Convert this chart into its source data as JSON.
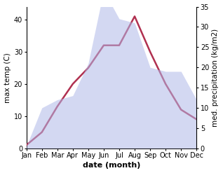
{
  "months": [
    "Jan",
    "Feb",
    "Mar",
    "Apr",
    "May",
    "Jun",
    "Jul",
    "Aug",
    "Sep",
    "Oct",
    "Nov",
    "Dec"
  ],
  "temp": [
    1,
    5,
    13,
    20,
    25,
    32,
    32,
    41,
    30,
    20,
    12,
    9
  ],
  "precip": [
    0.5,
    10,
    12,
    13,
    21,
    39,
    32,
    31,
    20,
    19,
    19,
    12
  ],
  "temp_color": "#b03050",
  "precip_fill_color": "#b0b8e8",
  "precip_fill_alpha": 0.55,
  "xlabel": "date (month)",
  "ylabel_left": "max temp (C)",
  "ylabel_right": "med. precipitation (kg/m2)",
  "ylim_left": [
    0,
    44
  ],
  "ylim_right": [
    0,
    34
  ],
  "yticks_left": [
    0,
    10,
    20,
    30,
    40
  ],
  "yticks_right": [
    0,
    5,
    10,
    15,
    20,
    25,
    30,
    35
  ],
  "bg_color": "#ffffff",
  "xlabel_fontsize": 8,
  "ylabel_fontsize": 7.5,
  "tick_fontsize": 7
}
